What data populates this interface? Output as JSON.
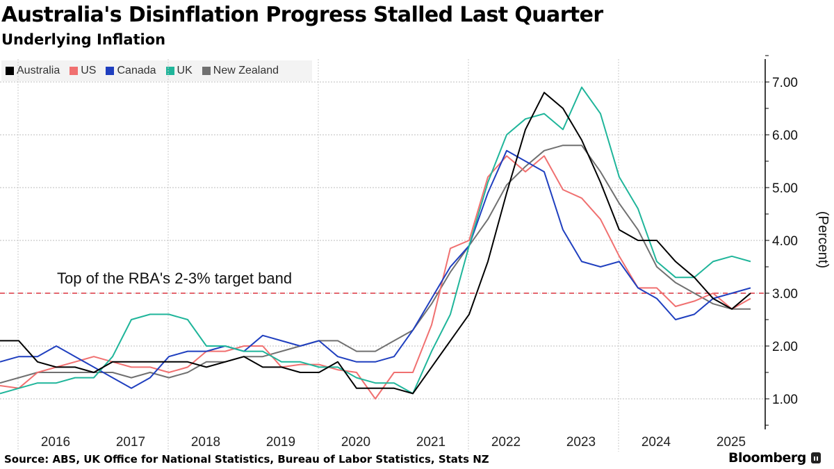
{
  "header": {
    "title": "Australia's Disinflation Progress Stalled Last Quarter",
    "subtitle": "Underlying Inflation"
  },
  "footer": {
    "source": "Source: ABS, UK Office for National Statistics, Bureau of Labor Statistics, Stats NZ",
    "brand": "Bloomberg"
  },
  "chart_data": {
    "type": "line",
    "title": "Australia's Disinflation Progress Stalled Last Quarter",
    "subtitle": "Underlying Inflation",
    "xlabel": "",
    "ylabel": "(Percent)",
    "ylim": [
      0.45,
      7.5
    ],
    "yticks": [
      1.0,
      2.0,
      3.0,
      4.0,
      5.0,
      6.0,
      7.0
    ],
    "ytick_labels": [
      "1.00",
      "2.00",
      "3.00",
      "4.00",
      "5.00",
      "6.00",
      "7.00"
    ],
    "xlim": [
      2015.76,
      2025.95
    ],
    "xticks": [
      2016,
      2017,
      2018,
      2019,
      2020,
      2021,
      2022,
      2023,
      2024,
      2025
    ],
    "xtick_labels": [
      "2016",
      "2017",
      "2018",
      "2019",
      "2020",
      "2021",
      "2022",
      "2023",
      "2024",
      "2025"
    ],
    "grid": true,
    "legend_position": "top-left",
    "x_start_quarter": "2015-Q3",
    "x_frequency": "quarterly",
    "reference_line": {
      "value": 3.0,
      "label": "Top of the RBA's 2-3% target band",
      "color": "#e0505a",
      "style": "dashed"
    },
    "series": [
      {
        "name": "Australia",
        "color": "#000000",
        "values": [
          2.1,
          2.1,
          1.7,
          1.6,
          1.6,
          1.5,
          1.7,
          1.7,
          1.7,
          1.7,
          1.7,
          1.6,
          1.7,
          1.8,
          1.6,
          1.6,
          1.5,
          1.5,
          1.7,
          1.2,
          1.2,
          1.2,
          1.1,
          1.6,
          2.1,
          2.6,
          3.6,
          4.9,
          6.1,
          6.8,
          6.5,
          5.9,
          5.1,
          4.2,
          4.0,
          4.0,
          3.6,
          3.3,
          2.9,
          2.7,
          3.0
        ]
      },
      {
        "name": "US",
        "color": "#f07070",
        "values": [
          1.25,
          1.2,
          1.5,
          1.6,
          1.7,
          1.8,
          1.7,
          1.6,
          1.6,
          1.5,
          1.6,
          1.9,
          1.9,
          2.0,
          2.0,
          1.6,
          1.65,
          1.65,
          1.55,
          1.5,
          1.0,
          1.5,
          1.5,
          2.4,
          3.85,
          4.0,
          5.2,
          5.6,
          5.3,
          5.6,
          4.96,
          4.8,
          4.4,
          3.7,
          3.1,
          3.1,
          2.75,
          2.85,
          3.0,
          2.7,
          2.9
        ]
      },
      {
        "name": "Canada",
        "color": "#1f3fbf",
        "values": [
          1.7,
          1.8,
          1.8,
          2.0,
          1.8,
          1.6,
          1.4,
          1.2,
          1.4,
          1.8,
          1.9,
          1.9,
          2.0,
          1.9,
          2.2,
          2.1,
          2.0,
          2.1,
          1.8,
          1.7,
          1.7,
          1.8,
          2.3,
          2.9,
          3.5,
          3.9,
          4.9,
          5.7,
          5.5,
          5.3,
          4.2,
          3.6,
          3.5,
          3.6,
          3.1,
          2.9,
          2.5,
          2.6,
          2.9,
          3.0,
          3.1
        ]
      },
      {
        "name": "UK",
        "color": "#1fb59a",
        "values": [
          1.1,
          1.2,
          1.3,
          1.3,
          1.4,
          1.4,
          1.8,
          2.5,
          2.6,
          2.6,
          2.5,
          2.0,
          2.0,
          1.9,
          1.9,
          1.7,
          1.7,
          1.6,
          1.6,
          1.4,
          1.3,
          1.3,
          1.1,
          1.9,
          2.6,
          3.9,
          5.1,
          6.0,
          6.3,
          6.4,
          6.1,
          6.9,
          6.4,
          5.2,
          4.6,
          3.6,
          3.3,
          3.3,
          3.6,
          3.7,
          3.6
        ]
      },
      {
        "name": "New Zealand",
        "color": "#707070",
        "values": [
          1.3,
          1.4,
          1.5,
          1.5,
          1.5,
          1.5,
          1.5,
          1.4,
          1.5,
          1.4,
          1.5,
          1.7,
          1.7,
          1.8,
          1.8,
          1.9,
          2.0,
          2.1,
          2.1,
          1.9,
          1.9,
          2.1,
          2.3,
          2.8,
          3.4,
          3.9,
          4.4,
          5.05,
          5.4,
          5.7,
          5.8,
          5.8,
          5.3,
          4.7,
          4.2,
          3.5,
          3.2,
          3.0,
          2.8,
          2.7,
          2.7
        ]
      }
    ]
  }
}
